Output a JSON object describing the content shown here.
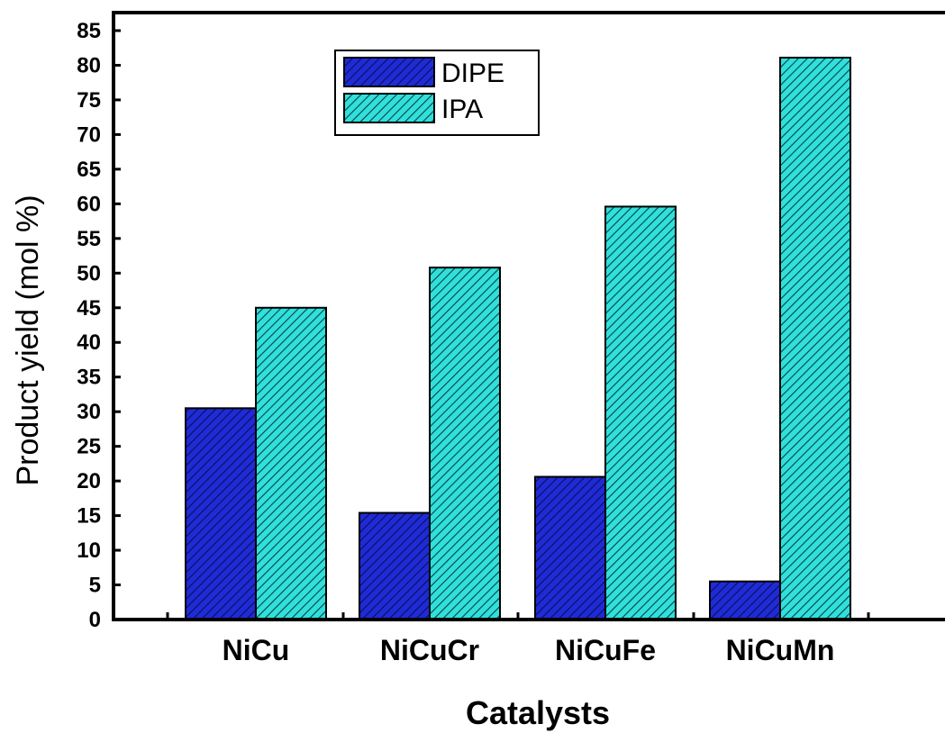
{
  "chart_data": {
    "type": "bar",
    "categories": [
      "NiCu",
      "NiCuCr",
      "NiCuFe",
      "NiCuMn"
    ],
    "series": [
      {
        "name": "DIPE",
        "values": [
          30.5,
          15.4,
          20.6,
          5.5
        ],
        "color": "#1f2bd6",
        "hatch_color": "#0b0f55"
      },
      {
        "name": "IPA",
        "values": [
          45.0,
          50.8,
          59.6,
          81.1
        ],
        "color": "#2fe0dc",
        "hatch_color": "#0c3f3e"
      }
    ],
    "ylim": [
      0,
      85
    ],
    "yticks": [
      0,
      5,
      10,
      15,
      20,
      25,
      30,
      35,
      40,
      45,
      50,
      55,
      60,
      65,
      70,
      75,
      80,
      85
    ],
    "xlabel": "Catalysts",
    "ylabel": "Product yield (mol %)",
    "legend_position": "top-center",
    "grid": false
  }
}
